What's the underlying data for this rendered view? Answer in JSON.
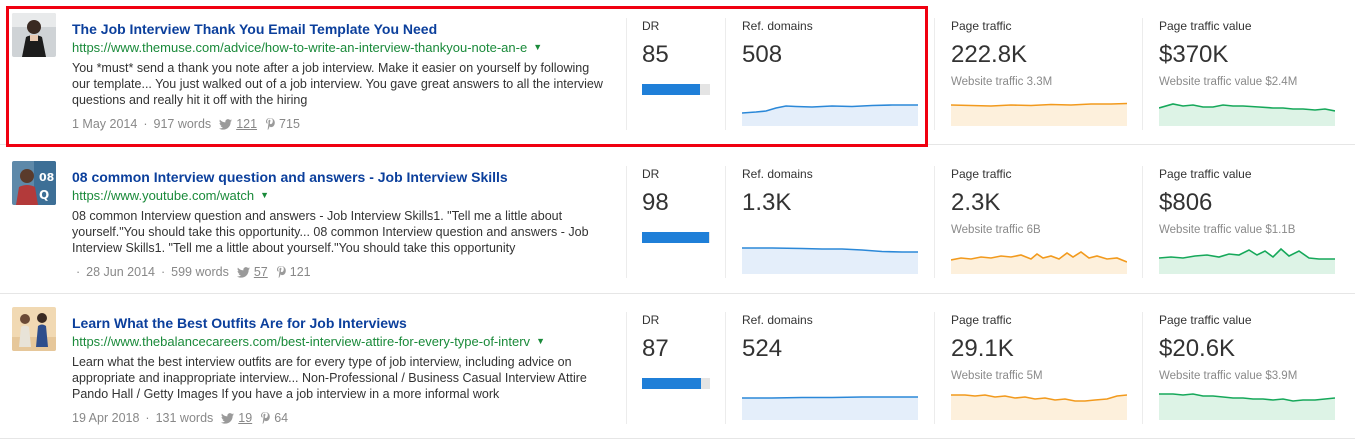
{
  "colors": {
    "title": "#0b3f9c",
    "url": "#1a8a3a",
    "dr_bar": "#1f7fd8",
    "ref_line": "#2b88d8",
    "traffic_line": "#f29a1d",
    "value_line": "#16a85a",
    "highlight": "#f00010"
  },
  "results": [
    {
      "title": "The Job Interview Thank You Email Template You Need",
      "url": "https://www.themuse.com/advice/how-to-write-an-interview-thankyou-note-an-e",
      "snippet": "You *must* send a thank you note after a job interview. Make it easier on yourself by following our template... You just walked out of a job interview. You gave great answers to all the interview questions and really hit it off with the hiring",
      "date": "1 May 2014",
      "words": "917 words",
      "tweets": "121",
      "pins": "715",
      "dr_label": "DR",
      "dr": "85",
      "dr_fraction": 0.85,
      "ref_label": "Ref. domains",
      "ref_domains": "508",
      "traffic_label": "Page traffic",
      "traffic": "222.8K",
      "traffic_sub": "Website traffic 3.3M",
      "value_label": "Page traffic value",
      "value": "$370K",
      "value_sub": "Website traffic value $2.4M",
      "highlighted": true
    },
    {
      "title": "08 common Interview question and answers - Job Interview Skills",
      "url": "https://www.youtube.com/watch",
      "snippet": "08 common Interview question and answers - Job Interview Skills1. \"Tell me a little about yourself.\"You should take this opportunity... 08 common Interview question and answers - Job Interview Skills1. \"Tell me a little about yourself.\"You should take this opportunity",
      "date": "28 Jun 2014",
      "words": "599 words",
      "tweets": "57",
      "pins": "121",
      "dr_label": "DR",
      "dr": "98",
      "dr_fraction": 0.98,
      "ref_label": "Ref. domains",
      "ref_domains": "1.3K",
      "traffic_label": "Page traffic",
      "traffic": "2.3K",
      "traffic_sub": "Website traffic 6B",
      "value_label": "Page traffic value",
      "value": "$806",
      "value_sub": "Website traffic value $1.1B",
      "highlighted": false
    },
    {
      "title": "Learn What the Best Outfits Are for Job Interviews",
      "url": "https://www.thebalancecareers.com/best-interview-attire-for-every-type-of-interv",
      "snippet": "Learn what the best interview outfits are for every type of job interview, including advice on appropriate and inappropriate interview... Non-Professional / Business Casual Interview Attire Pando Hall / Getty Images If you have a job interview in a more informal work",
      "date": "19 Apr 2018",
      "words": "131 words",
      "tweets": "19",
      "pins": "64",
      "dr_label": "DR",
      "dr": "87",
      "dr_fraction": 0.87,
      "ref_label": "Ref. domains",
      "ref_domains": "524",
      "traffic_label": "Page traffic",
      "traffic": "29.1K",
      "traffic_sub": "Website traffic 5M",
      "value_label": "Page traffic value",
      "value": "$20.6K",
      "value_sub": "Website traffic value $3.9M",
      "highlighted": false
    }
  ]
}
